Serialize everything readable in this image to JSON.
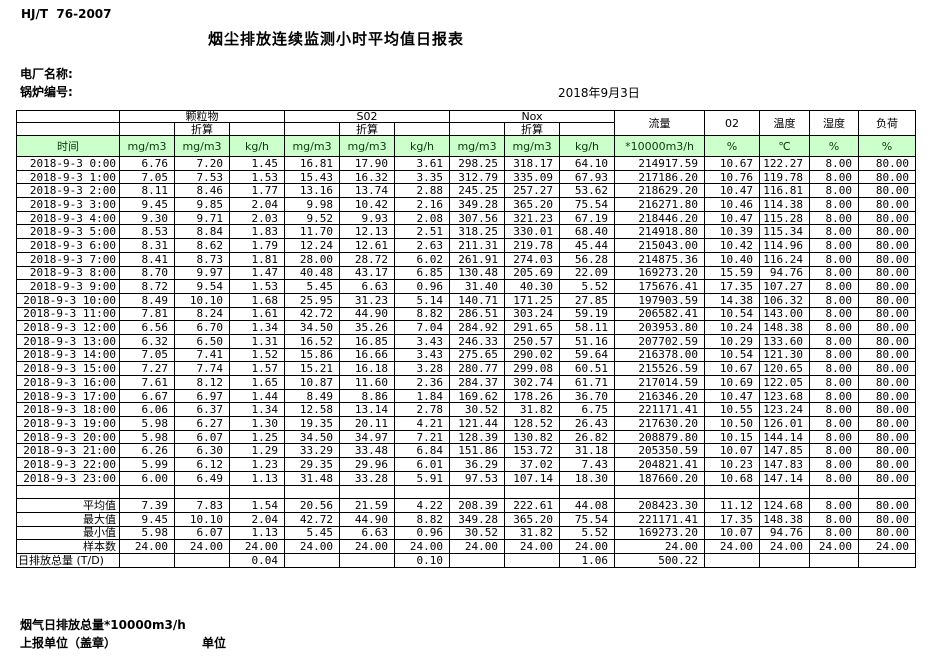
{
  "page": {
    "doc_code": "HJ/T  76-2007",
    "title": "烟尘排放连续监测小时平均值日报表",
    "plant_label": "电厂名称:",
    "boiler_label": "锅炉编号:",
    "date": "2018年9月3日",
    "footer_note": "烟气日排放总量*10000m3/h",
    "report_unit_label": "上报单位（盖章）",
    "unit_label": "单位"
  },
  "colors": {
    "header_green": "#ccffcc",
    "header_text": "#0a3a0a",
    "border": "#000000",
    "background": "#ffffff"
  },
  "table": {
    "header": {
      "time_label": "时间",
      "groups": [
        {
          "label": "颗粒物",
          "sub": "折算",
          "units": [
            "mg/m3",
            "mg/m3",
            "kg/h"
          ]
        },
        {
          "label": "S02",
          "sub": "折算",
          "units": [
            "mg/m3",
            "mg/m3",
            "kg/h"
          ]
        },
        {
          "label": "Nox",
          "sub": "折算",
          "units": [
            "mg/m3",
            "mg/m3",
            "kg/h"
          ]
        }
      ],
      "single_cols": [
        {
          "label": "流量",
          "unit": "*10000m3/h"
        },
        {
          "label": "02",
          "unit": "%"
        },
        {
          "label": "温度",
          "unit": "℃"
        },
        {
          "label": "湿度",
          "unit": "%"
        },
        {
          "label": "负荷",
          "unit": "%"
        }
      ]
    },
    "rows": [
      [
        "2018-9-3 0:00",
        "6.76",
        "7.20",
        "1.45",
        "16.81",
        "17.90",
        "3.61",
        "298.25",
        "318.17",
        "64.10",
        "214917.59",
        "10.67",
        "122.27",
        "8.00",
        "80.00"
      ],
      [
        "2018-9-3 1:00",
        "7.05",
        "7.53",
        "1.53",
        "15.43",
        "16.32",
        "3.35",
        "312.79",
        "335.09",
        "67.93",
        "217186.20",
        "10.76",
        "119.78",
        "8.00",
        "80.00"
      ],
      [
        "2018-9-3 2:00",
        "8.11",
        "8.46",
        "1.77",
        "13.16",
        "13.74",
        "2.88",
        "245.25",
        "257.27",
        "53.62",
        "218629.20",
        "10.47",
        "116.81",
        "8.00",
        "80.00"
      ],
      [
        "2018-9-3 3:00",
        "9.45",
        "9.85",
        "2.04",
        "9.98",
        "10.42",
        "2.16",
        "349.28",
        "365.20",
        "75.54",
        "216271.80",
        "10.46",
        "114.38",
        "8.00",
        "80.00"
      ],
      [
        "2018-9-3 4:00",
        "9.30",
        "9.71",
        "2.03",
        "9.52",
        "9.93",
        "2.08",
        "307.56",
        "321.23",
        "67.19",
        "218446.20",
        "10.47",
        "115.28",
        "8.00",
        "80.00"
      ],
      [
        "2018-9-3 5:00",
        "8.53",
        "8.84",
        "1.83",
        "11.70",
        "12.13",
        "2.51",
        "318.25",
        "330.01",
        "68.40",
        "214918.80",
        "10.39",
        "115.34",
        "8.00",
        "80.00"
      ],
      [
        "2018-9-3 6:00",
        "8.31",
        "8.62",
        "1.79",
        "12.24",
        "12.61",
        "2.63",
        "211.31",
        "219.78",
        "45.44",
        "215043.00",
        "10.42",
        "114.96",
        "8.00",
        "80.00"
      ],
      [
        "2018-9-3 7:00",
        "8.41",
        "8.73",
        "1.81",
        "28.00",
        "28.72",
        "6.02",
        "261.91",
        "274.03",
        "56.28",
        "214875.36",
        "10.40",
        "116.24",
        "8.00",
        "80.00"
      ],
      [
        "2018-9-3 8:00",
        "8.70",
        "9.97",
        "1.47",
        "40.48",
        "43.17",
        "6.85",
        "130.48",
        "205.69",
        "22.09",
        "169273.20",
        "15.59",
        "94.76",
        "8.00",
        "80.00"
      ],
      [
        "2018-9-3 9:00",
        "8.72",
        "9.54",
        "1.53",
        "5.45",
        "6.63",
        "0.96",
        "31.40",
        "40.30",
        "5.52",
        "175676.41",
        "17.35",
        "107.27",
        "8.00",
        "80.00"
      ],
      [
        "2018-9-3 10:00",
        "8.49",
        "10.10",
        "1.68",
        "25.95",
        "31.23",
        "5.14",
        "140.71",
        "171.25",
        "27.85",
        "197903.59",
        "14.38",
        "106.32",
        "8.00",
        "80.00"
      ],
      [
        "2018-9-3 11:00",
        "7.81",
        "8.24",
        "1.61",
        "42.72",
        "44.90",
        "8.82",
        "286.51",
        "303.24",
        "59.19",
        "206582.41",
        "10.54",
        "143.00",
        "8.00",
        "80.00"
      ],
      [
        "2018-9-3 12:00",
        "6.56",
        "6.70",
        "1.34",
        "34.50",
        "35.26",
        "7.04",
        "284.92",
        "291.65",
        "58.11",
        "203953.80",
        "10.24",
        "148.38",
        "8.00",
        "80.00"
      ],
      [
        "2018-9-3 13:00",
        "6.32",
        "6.50",
        "1.31",
        "16.52",
        "16.85",
        "3.43",
        "246.33",
        "250.57",
        "51.16",
        "207702.59",
        "10.29",
        "133.60",
        "8.00",
        "80.00"
      ],
      [
        "2018-9-3 14:00",
        "7.05",
        "7.41",
        "1.52",
        "15.86",
        "16.66",
        "3.43",
        "275.65",
        "290.02",
        "59.64",
        "216378.00",
        "10.54",
        "121.30",
        "8.00",
        "80.00"
      ],
      [
        "2018-9-3 15:00",
        "7.27",
        "7.74",
        "1.57",
        "15.21",
        "16.18",
        "3.28",
        "280.77",
        "299.08",
        "60.51",
        "215526.59",
        "10.67",
        "120.65",
        "8.00",
        "80.00"
      ],
      [
        "2018-9-3 16:00",
        "7.61",
        "8.12",
        "1.65",
        "10.87",
        "11.60",
        "2.36",
        "284.37",
        "302.74",
        "61.71",
        "217014.59",
        "10.69",
        "122.05",
        "8.00",
        "80.00"
      ],
      [
        "2018-9-3 17:00",
        "6.67",
        "6.97",
        "1.44",
        "8.49",
        "8.86",
        "1.84",
        "169.62",
        "178.26",
        "36.70",
        "216346.20",
        "10.47",
        "123.68",
        "8.00",
        "80.00"
      ],
      [
        "2018-9-3 18:00",
        "6.06",
        "6.37",
        "1.34",
        "12.58",
        "13.14",
        "2.78",
        "30.52",
        "31.82",
        "6.75",
        "221171.41",
        "10.55",
        "123.24",
        "8.00",
        "80.00"
      ],
      [
        "2018-9-3 19:00",
        "5.98",
        "6.27",
        "1.30",
        "19.35",
        "20.11",
        "4.21",
        "121.44",
        "128.52",
        "26.43",
        "217630.20",
        "10.50",
        "126.01",
        "8.00",
        "80.00"
      ],
      [
        "2018-9-3 20:00",
        "5.98",
        "6.07",
        "1.25",
        "34.50",
        "34.97",
        "7.21",
        "128.39",
        "130.82",
        "26.82",
        "208879.80",
        "10.15",
        "144.14",
        "8.00",
        "80.00"
      ],
      [
        "2018-9-3 21:00",
        "6.26",
        "6.30",
        "1.29",
        "33.29",
        "33.48",
        "6.84",
        "151.86",
        "153.72",
        "31.18",
        "205350.59",
        "10.07",
        "147.85",
        "8.00",
        "80.00"
      ],
      [
        "2018-9-3 22:00",
        "5.99",
        "6.12",
        "1.23",
        "29.35",
        "29.96",
        "6.01",
        "36.29",
        "37.02",
        "7.43",
        "204821.41",
        "10.23",
        "147.83",
        "8.00",
        "80.00"
      ],
      [
        "2018-9-3 23:00",
        "6.00",
        "6.49",
        "1.13",
        "31.48",
        "33.28",
        "5.91",
        "97.53",
        "107.14",
        "18.30",
        "187660.20",
        "10.68",
        "147.14",
        "8.00",
        "80.00"
      ]
    ],
    "summary": [
      [
        "平均值",
        "7.39",
        "7.83",
        "1.54",
        "20.56",
        "21.59",
        "4.22",
        "208.39",
        "222.61",
        "44.08",
        "208423.30",
        "11.12",
        "124.68",
        "8.00",
        "80.00"
      ],
      [
        "最大值",
        "9.45",
        "10.10",
        "2.04",
        "42.72",
        "44.90",
        "8.82",
        "349.28",
        "365.20",
        "75.54",
        "221171.41",
        "17.35",
        "148.38",
        "8.00",
        "80.00"
      ],
      [
        "最小值",
        "5.98",
        "6.07",
        "1.13",
        "5.45",
        "6.63",
        "0.96",
        "30.52",
        "31.82",
        "5.52",
        "169273.20",
        "10.07",
        "94.76",
        "8.00",
        "80.00"
      ],
      [
        "样本数",
        "24.00",
        "24.00",
        "24.00",
        "24.00",
        "24.00",
        "24.00",
        "24.00",
        "24.00",
        "24.00",
        "24.00",
        "24.00",
        "24.00",
        "24.00",
        "24.00"
      ],
      [
        "日排放总量 (T/D)",
        "",
        "",
        "0.04",
        "",
        "",
        "0.10",
        "",
        "",
        "1.06",
        "500.22",
        "",
        "",
        "",
        ""
      ]
    ]
  }
}
